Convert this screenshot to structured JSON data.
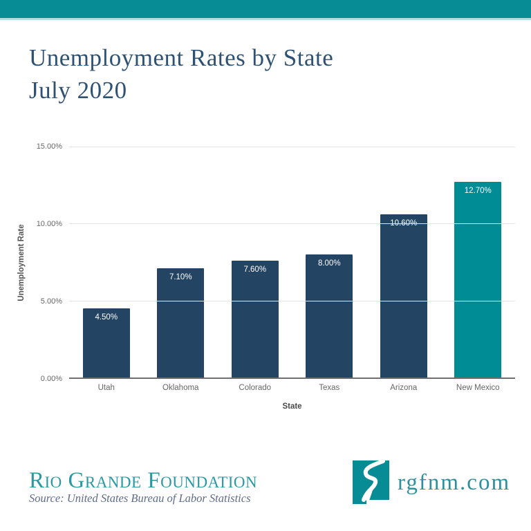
{
  "header": {
    "accent_color": "#078b95",
    "strip_color": "#b5dae2"
  },
  "title": {
    "line1": "Unemployment Rates by State",
    "line2": "July 2020",
    "color": "#2e5174"
  },
  "chart_data": {
    "type": "bar",
    "title": "Unemployment Rates by State July 2020",
    "xlabel": "State",
    "ylabel": "Unemployment Rate",
    "categories": [
      "Utah",
      "Oklahoma",
      "Colorado",
      "Texas",
      "Arizona",
      "New Mexico"
    ],
    "values": [
      4.5,
      7.1,
      7.6,
      8.0,
      10.6,
      12.7
    ],
    "value_labels": [
      "4.50%",
      "7.10%",
      "7.60%",
      "8.00%",
      "10.60%",
      "12.70%"
    ],
    "bar_colors": [
      "#234462",
      "#234462",
      "#234462",
      "#234462",
      "#234462",
      "#008c94"
    ],
    "highlight_category": "New Mexico",
    "ylim": [
      0,
      15
    ],
    "yticks": [
      {
        "value": 15,
        "label": "15.00%"
      },
      {
        "value": 10,
        "label": "10.00%"
      },
      {
        "value": 5,
        "label": "5.00%"
      },
      {
        "value": 0,
        "label": "0.00%"
      }
    ],
    "grid": true,
    "legend_position": "none",
    "bar_label_color": "#ffffff",
    "grid_color": "#e2e2e2",
    "axis_line_color": "#6f6f6f"
  },
  "footer": {
    "org_name": "Rio Grande Foundation",
    "source": "Source: United States Bureau of Labor Statistics",
    "website": "rgfnm.com",
    "logo_icon": "new-mexico-river-logo",
    "org_color": "#2b99a3",
    "site_color": "#2e8f9d"
  }
}
